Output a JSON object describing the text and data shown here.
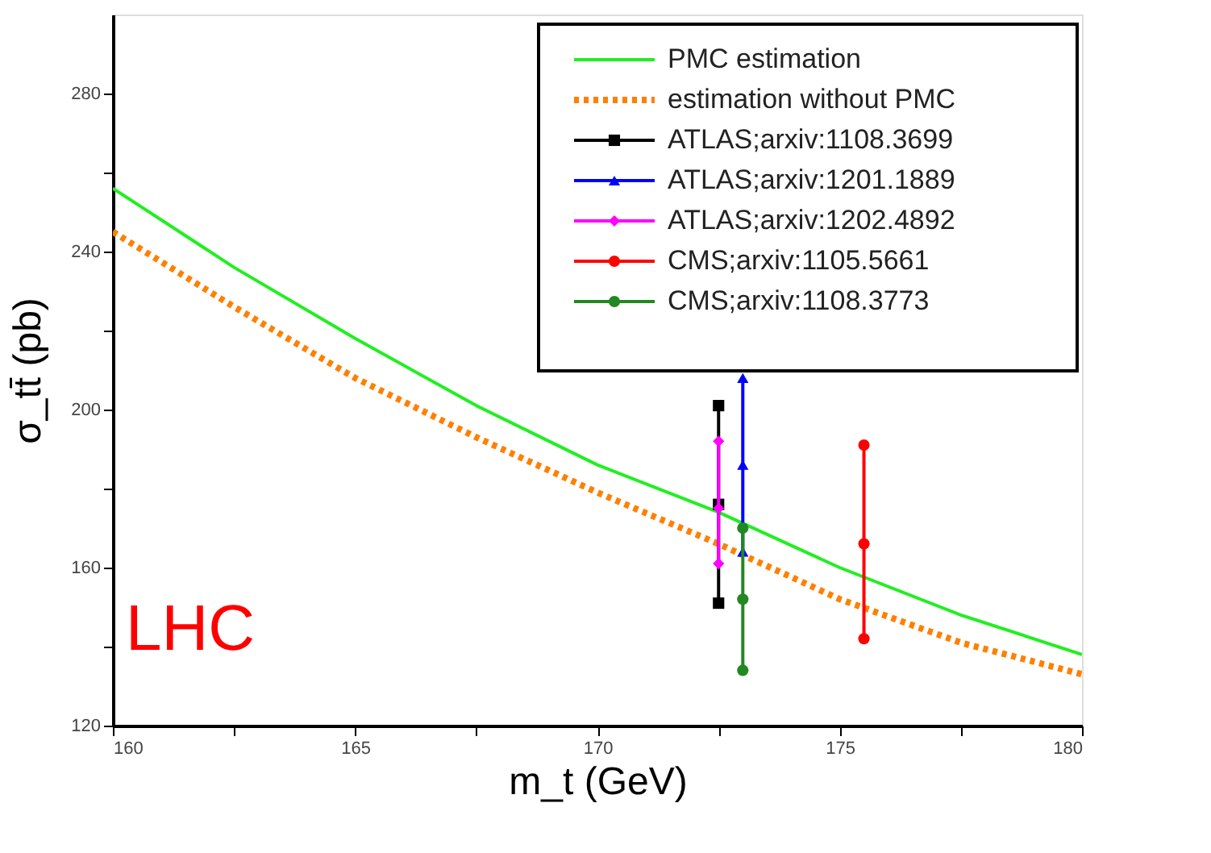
{
  "chart_data": {
    "type": "line",
    "xlabel": "m_t (GeV)",
    "ylabel": "σ_tt̄ (pb)",
    "xlim": [
      160,
      180
    ],
    "ylim": [
      120,
      300
    ],
    "xticks": [
      160,
      {
        "value": 162.5,
        "label": null
      },
      165,
      {
        "value": 167.5,
        "label": null
      },
      170,
      {
        "value": 172.5,
        "label": null
      },
      175,
      {
        "value": 177.5,
        "label": null
      },
      180
    ],
    "yticks": [
      120,
      {
        "value": 140,
        "label": null
      },
      160,
      {
        "value": 180,
        "label": null
      },
      200,
      {
        "value": 220,
        "label": null
      },
      240,
      {
        "value": 260,
        "label": null
      },
      280
    ],
    "grid": false,
    "legend": "top right",
    "annotations": [
      "LHC"
    ],
    "series": [
      {
        "name": "PMC estimation",
        "color": "#22ee22",
        "line_style": "solid",
        "marker": "none",
        "x": [
          160,
          162.5,
          165,
          167.5,
          170,
          172.5,
          175,
          177.5,
          180
        ],
        "values": [
          256,
          236,
          218,
          201,
          186,
          174,
          160,
          148,
          138
        ]
      },
      {
        "name": "estimation without PMC",
        "color": "#ff8000",
        "line_style": "dotted",
        "marker": "none",
        "x": [
          160,
          162.5,
          165,
          167.5,
          170,
          172.5,
          175,
          177.5,
          180
        ],
        "values": [
          245,
          226,
          208,
          193,
          179,
          166,
          152,
          141,
          133
        ]
      },
      {
        "name": "ATLAS;arxiv:1108.3699",
        "color": "#000000",
        "line_style": "solid",
        "marker": "square",
        "x": [
          172.5,
          172.5,
          172.5
        ],
        "values": [
          151,
          176,
          201
        ]
      },
      {
        "name": "ATLAS;arxiv:1201.1889",
        "color": "#0000ff",
        "line_style": "solid",
        "marker": "triangle",
        "x": [
          173,
          173,
          173
        ],
        "values": [
          164,
          186,
          208
        ]
      },
      {
        "name": "ATLAS;arxiv:1202.4892",
        "color": "#ff00ff",
        "line_style": "solid",
        "marker": "diamond",
        "x": [
          172.5,
          172.5,
          172.5
        ],
        "values": [
          161,
          175,
          192
        ]
      },
      {
        "name": "CMS;arxiv:1105.5661",
        "color": "#ff0000",
        "line_style": "solid",
        "marker": "circle",
        "x": [
          175.5,
          175.5,
          175.5
        ],
        "values": [
          142,
          166,
          191
        ]
      },
      {
        "name": "CMS;arxiv:1108.3773",
        "color": "#228822",
        "line_style": "solid",
        "marker": "circle",
        "x": [
          173,
          173,
          173
        ],
        "values": [
          134,
          152,
          170
        ]
      }
    ]
  }
}
